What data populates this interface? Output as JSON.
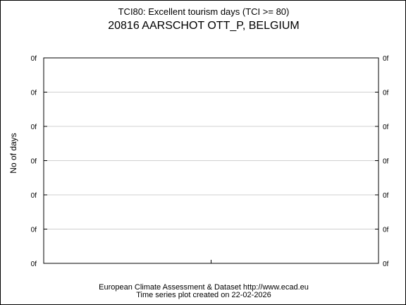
{
  "chart_data": {
    "type": "line",
    "title": "TCI80: Excellent tourism days (TCI >= 80)",
    "subtitle": "20816 AARSCHOT OTT_P, BELGIUM",
    "ylabel": "No of days",
    "y_tick_labels": [
      "0f",
      "0f",
      "0f",
      "0f",
      "0f",
      "0f",
      "0f"
    ],
    "series": [],
    "grid": true
  },
  "footer": {
    "source": "European Climate Assessment & Dataset  http://www.ecad.eu",
    "created": "Time series plot created on 22-02-2026"
  }
}
